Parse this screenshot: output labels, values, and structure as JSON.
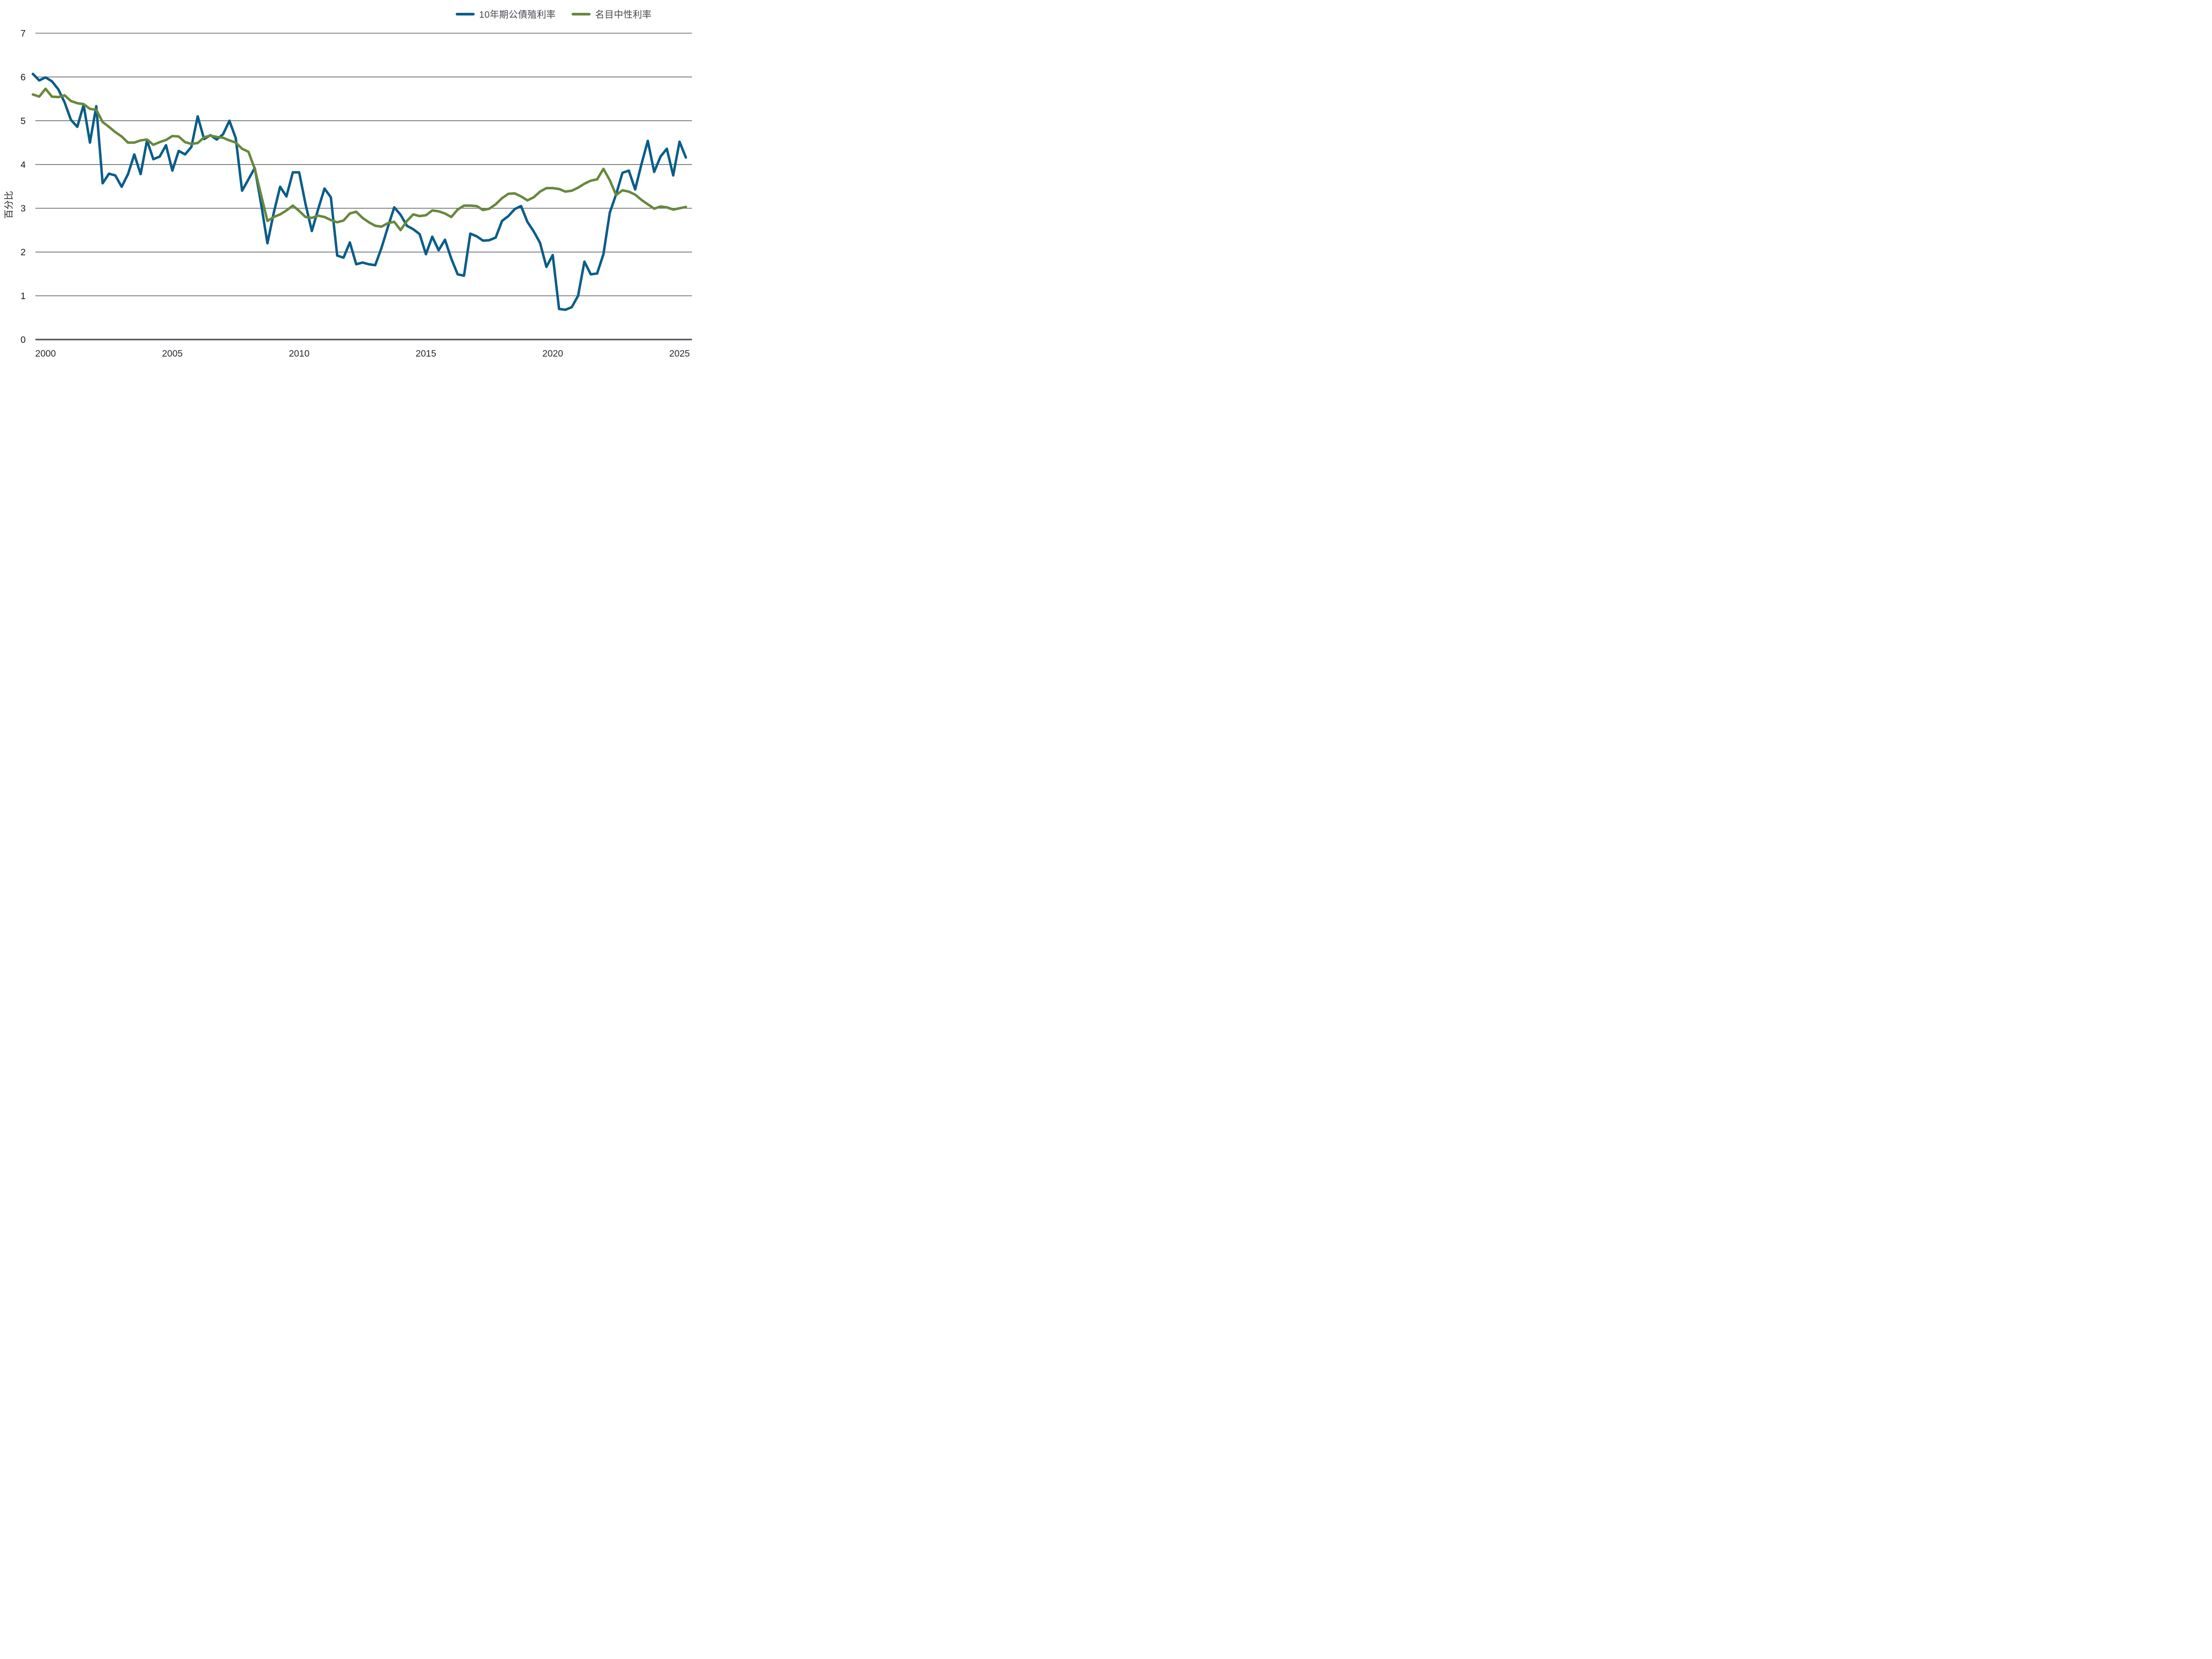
{
  "chart_data": {
    "type": "line",
    "title": "",
    "xlabel": "",
    "ylabel": "百分比",
    "x_start": 1999.5,
    "x_step": 0.25,
    "x_ticks": [
      2000,
      2005,
      2010,
      2015,
      2020,
      2025
    ],
    "y_ticks": [
      0,
      1,
      2,
      3,
      4,
      5,
      6,
      7
    ],
    "ylim": [
      0,
      7
    ],
    "xlim": [
      1999.4,
      2025.5
    ],
    "grid": "horizontal",
    "legend_position": "top-right",
    "series": [
      {
        "name": "10年期公債殖利率",
        "color": "#0a5d89",
        "values": [
          6.07,
          5.92,
          5.99,
          5.9,
          5.72,
          5.42,
          5.02,
          4.86,
          5.36,
          4.5,
          5.33,
          3.57,
          3.79,
          3.75,
          3.49,
          3.78,
          4.23,
          3.78,
          4.55,
          4.12,
          4.18,
          4.44,
          3.86,
          4.31,
          4.23,
          4.4,
          5.1,
          4.58,
          4.67,
          4.57,
          4.69,
          5.0,
          4.6,
          3.4,
          3.66,
          3.92,
          3.1,
          2.2,
          2.9,
          3.49,
          3.27,
          3.82,
          3.82,
          3.1,
          2.48,
          2.98,
          3.45,
          3.25,
          1.92,
          1.87,
          2.22,
          1.72,
          1.76,
          1.72,
          1.7,
          2.1,
          2.57,
          3.02,
          2.85,
          2.6,
          2.52,
          2.41,
          1.95,
          2.35,
          2.04,
          2.28,
          1.85,
          1.49,
          1.46,
          2.42,
          2.36,
          2.26,
          2.27,
          2.33,
          2.71,
          2.82,
          2.98,
          3.05,
          2.69,
          2.47,
          2.21,
          1.66,
          1.93,
          0.7,
          0.68,
          0.74,
          1.0,
          1.78,
          1.49,
          1.51,
          1.95,
          2.9,
          3.32,
          3.81,
          3.86,
          3.43,
          4.01,
          4.54,
          3.83,
          4.18,
          4.36,
          3.75,
          4.52,
          4.16
        ]
      },
      {
        "name": "名目中性利率",
        "color": "#67883d",
        "values": [
          5.6,
          5.55,
          5.73,
          5.55,
          5.54,
          5.58,
          5.45,
          5.4,
          5.38,
          5.27,
          5.25,
          4.97,
          4.86,
          4.74,
          4.64,
          4.5,
          4.5,
          4.55,
          4.57,
          4.45,
          4.51,
          4.56,
          4.65,
          4.64,
          4.51,
          4.47,
          4.49,
          4.62,
          4.66,
          4.63,
          4.61,
          4.55,
          4.5,
          4.36,
          4.29,
          3.9,
          3.3,
          2.71,
          2.8,
          2.86,
          2.95,
          3.06,
          2.94,
          2.8,
          2.78,
          2.83,
          2.8,
          2.73,
          2.68,
          2.72,
          2.88,
          2.92,
          2.78,
          2.68,
          2.6,
          2.58,
          2.66,
          2.69,
          2.5,
          2.71,
          2.86,
          2.82,
          2.84,
          2.95,
          2.93,
          2.88,
          2.8,
          2.97,
          3.06,
          3.06,
          3.05,
          2.96,
          2.99,
          3.09,
          3.23,
          3.33,
          3.34,
          3.27,
          3.18,
          3.25,
          3.38,
          3.46,
          3.46,
          3.44,
          3.38,
          3.4,
          3.47,
          3.56,
          3.63,
          3.66,
          3.9,
          3.64,
          3.3,
          3.41,
          3.38,
          3.31,
          3.19,
          3.09,
          2.99,
          3.04,
          3.02,
          2.97,
          3.0,
          3.03
        ]
      }
    ],
    "colors": {
      "grid": "#5f6268",
      "axis": "#54575d",
      "tick_label": "#26292e",
      "legend_text": "#46494f",
      "background": "#ffffff"
    }
  },
  "legend": {
    "items": [
      {
        "label": "10年期公債殖利率",
        "color": "#0a5d89"
      },
      {
        "label": "名目中性利率",
        "color": "#67883d"
      }
    ]
  },
  "axis": {
    "y_label": "百分比"
  }
}
